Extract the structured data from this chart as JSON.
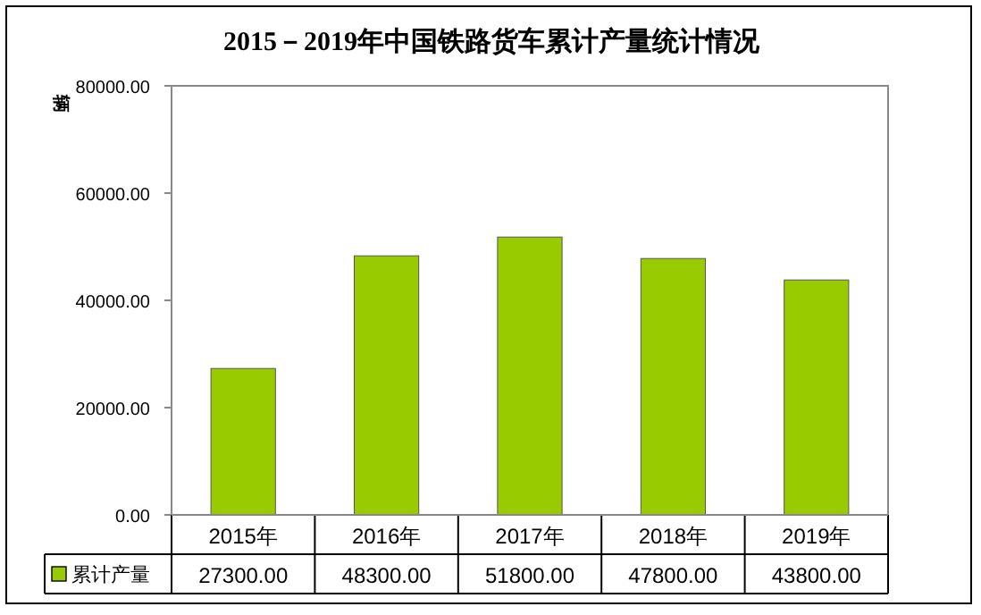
{
  "chart_data": {
    "type": "bar",
    "title": "2015－2019年中国铁路货车累计产量统计情况",
    "ylabel": "辆",
    "categories": [
      "2015年",
      "2016年",
      "2017年",
      "2018年",
      "2019年"
    ],
    "series": [
      {
        "name": "累计产量",
        "color": "#99cc00",
        "values": [
          27300,
          48300,
          51800,
          47800,
          43800
        ],
        "value_labels": [
          "27300.00",
          "48300.00",
          "51800.00",
          "47800.00",
          "43800.00"
        ]
      }
    ],
    "ylim": [
      0,
      80000
    ],
    "yticks": [
      {
        "value": 0,
        "label": "0.00"
      },
      {
        "value": 20000,
        "label": "20000.00"
      },
      {
        "value": 40000,
        "label": "40000.00"
      },
      {
        "value": 60000,
        "label": "60000.00"
      },
      {
        "value": 80000,
        "label": "80000.00"
      }
    ],
    "grid": false,
    "legend": "bottom"
  }
}
